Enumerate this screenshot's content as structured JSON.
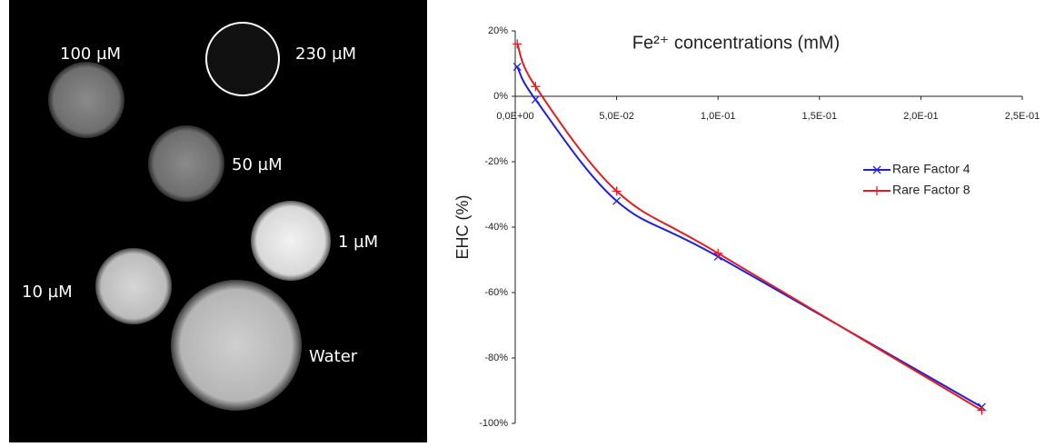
{
  "image_labels": [
    "100 µM",
    "230 µM",
    "50 µM",
    "1 µM",
    "10 µM",
    "Water"
  ],
  "chart_data": {
    "type": "line",
    "title": "Fe²⁺ concentrations (mM)",
    "y_label": "EHC (%)",
    "x": [
      0.001,
      0.01,
      0.05,
      0.1,
      0.23
    ],
    "series": [
      {
        "name": "Rare Factor 4",
        "color": "#1f1fe0",
        "marker": "x",
        "values": [
          9,
          -1,
          -32,
          -49,
          -95
        ]
      },
      {
        "name": "Rare Factor 8",
        "color": "#e01f1f",
        "marker": "+",
        "values": [
          16,
          3,
          -29,
          -48,
          -96
        ]
      }
    ],
    "xlim": [
      0,
      0.25
    ],
    "xticks": [
      {
        "value": 0,
        "label": "0,0E+00"
      },
      {
        "value": 0.05,
        "label": "5,0E-02"
      },
      {
        "value": 0.1,
        "label": "1,0E-01"
      },
      {
        "value": 0.15,
        "label": "1,5E-01"
      },
      {
        "value": 0.2,
        "label": "2,0E-01"
      },
      {
        "value": 0.25,
        "label": "2,5E-01"
      }
    ],
    "ylim": [
      -100,
      20
    ],
    "yticks": [
      {
        "value": 20,
        "label": "20%"
      },
      {
        "value": 0,
        "label": "0%"
      },
      {
        "value": -20,
        "label": "-20%"
      },
      {
        "value": -40,
        "label": "-40%"
      },
      {
        "value": -60,
        "label": "-60%"
      },
      {
        "value": -80,
        "label": "-80%"
      },
      {
        "value": -100,
        "label": "-100%"
      }
    ],
    "grid": false,
    "legend": "right"
  }
}
